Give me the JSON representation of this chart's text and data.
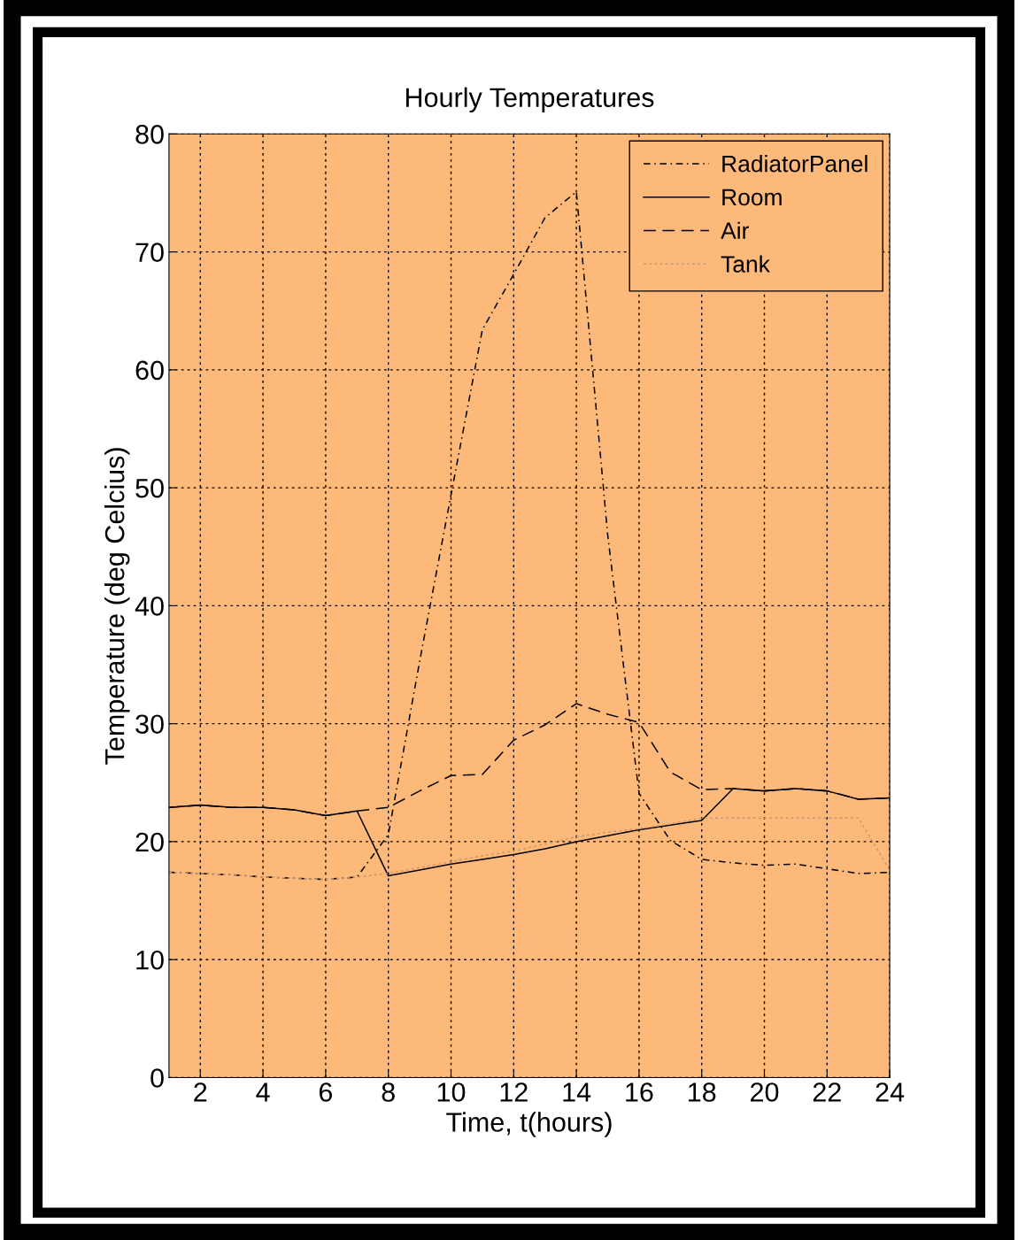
{
  "chart_data": {
    "type": "line",
    "title": "Hourly Temperatures",
    "xlabel": "Time, t(hours)",
    "ylabel": "Temperature (deg Celcius)",
    "x": [
      1,
      2,
      3,
      4,
      5,
      6,
      7,
      8,
      9,
      10,
      11,
      12,
      13,
      14,
      15,
      16,
      17,
      18,
      19,
      20,
      21,
      22,
      23,
      24
    ],
    "series": [
      {
        "name": "RadiatorPanel",
        "color": "#000000",
        "line_style": "dashdot",
        "values": [
          17.4,
          17.3,
          17.2,
          17.0,
          16.9,
          16.8,
          17.0,
          20.6,
          35.3,
          49.4,
          63.4,
          68.1,
          72.9,
          75.1,
          46.0,
          24.1,
          20.1,
          18.5,
          18.2,
          18.0,
          18.1,
          17.7,
          17.3,
          17.4
        ]
      },
      {
        "name": "Room",
        "color": "#000000",
        "line_style": "solid",
        "values": [
          22.9,
          23.1,
          22.9,
          22.9,
          22.7,
          22.2,
          22.6,
          17.1,
          17.6,
          18.1,
          18.5,
          18.9,
          19.4,
          20.0,
          20.5,
          21.0,
          21.4,
          21.8,
          24.5,
          24.3,
          24.5,
          24.3,
          23.6,
          23.7
        ]
      },
      {
        "name": "Air",
        "color": "#000000",
        "line_style": "dashed",
        "values": [
          22.9,
          23.1,
          22.9,
          22.9,
          22.7,
          22.2,
          22.6,
          22.9,
          24.3,
          25.6,
          25.7,
          28.6,
          29.9,
          31.7,
          30.8,
          30.1,
          25.9,
          24.4,
          24.5,
          24.3,
          24.5,
          24.3,
          23.6,
          23.7
        ]
      },
      {
        "name": "Tank",
        "color": "#c89a72",
        "line_style": "dotted",
        "values": [
          17.4,
          17.3,
          17.2,
          17.0,
          16.9,
          16.8,
          17.0,
          17.3,
          17.8,
          18.3,
          18.8,
          19.2,
          19.8,
          20.4,
          20.8,
          21.1,
          21.5,
          22.0,
          22.0,
          22.0,
          22.0,
          22.0,
          22.0,
          17.6
        ]
      }
    ],
    "xlim": [
      1,
      24
    ],
    "ylim": [
      0,
      80
    ],
    "xticks": [
      2,
      4,
      6,
      8,
      10,
      12,
      14,
      16,
      18,
      20,
      22,
      24
    ],
    "yticks": [
      0,
      10,
      20,
      30,
      40,
      50,
      60,
      70,
      80
    ],
    "grid": true,
    "legend": "top right",
    "marker": "none"
  }
}
